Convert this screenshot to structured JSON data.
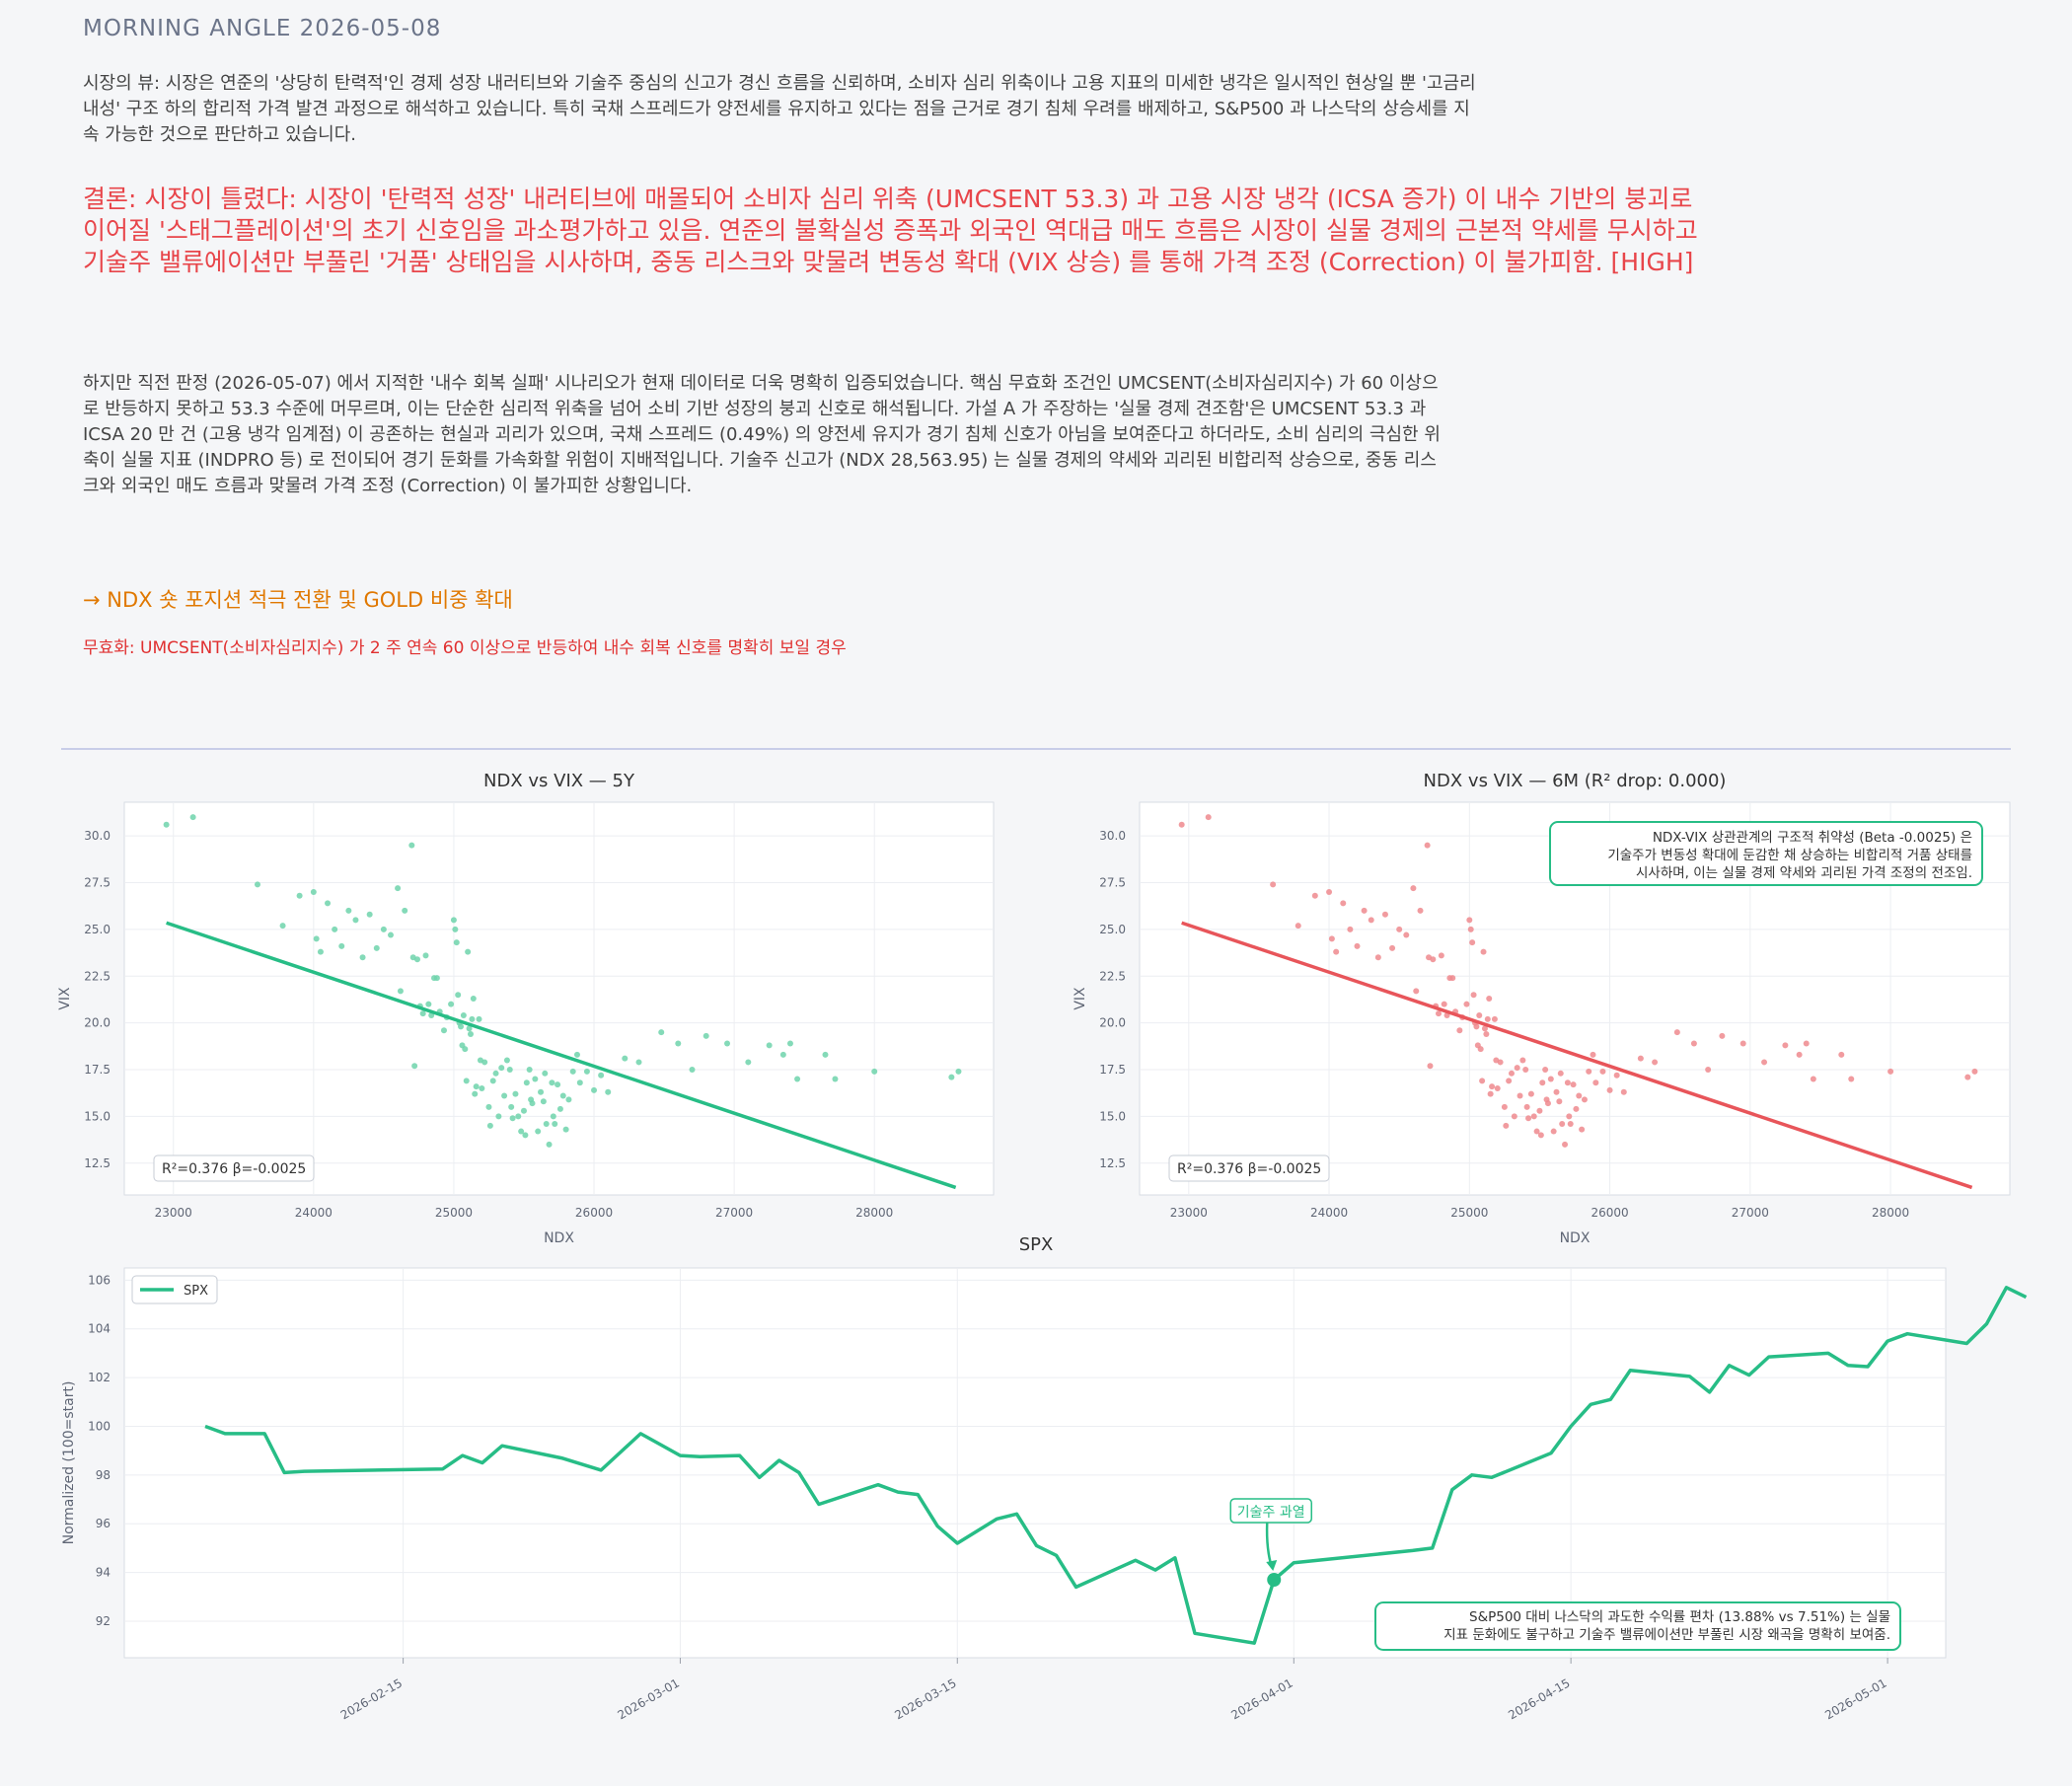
{
  "header": {
    "title": "MORNING ANGLE  2026-05-08"
  },
  "view": {
    "text": "시장의 뷰: 시장은 연준의 '상당히 탄력적'인 경제 성장 내러티브와 기술주 중심의 신고가 경신 흐름을 신뢰하며, 소비자 심리 위축이나 고용 지표의 미세한 냉각은 일시적인 현상일 뿐 '고금리 내성' 구조 하의 합리적 가격 발견 과정으로 해석하고 있습니다. 특히 국채 스프레드가 양전세를 유지하고 있다는 점을 근거로 경기 침체 우려를 배제하고, S&P500 과 나스닥의 상승세를 지속 가능한 것으로 판단하고 있습니다."
  },
  "conclusion": {
    "text": "결론: 시장이 틀렸다: 시장이 '탄력적 성장' 내러티브에 매몰되어 소비자 심리 위축 (UMCSENT 53.3) 과 고용 시장 냉각 (ICSA 증가) 이 내수 기반의 붕괴로 이어질 '스태그플레이션'의 초기 신호임을 과소평가하고 있음. 연준의 불확실성 증폭과 외국인 역대급 매도 흐름은 시장이 실물 경제의 근본적 약세를 무시하고 기술주 밸류에이션만 부풀린 '거품' 상태임을 시사하며, 중동 리스크와 맞물려 변동성 확대 (VIX 상승) 를 통해 가격 조정 (Correction) 이 불가피함.  [HIGH]"
  },
  "analysis": {
    "text": "하지만 직전 판정 (2026-05-07) 에서 지적한 '내수 회복 실패' 시나리오가 현재 데이터로 더욱 명확히 입증되었습니다. 핵심 무효화 조건인 UMCSENT(소비자심리지수) 가 60 이상으로 반등하지 못하고 53.3 수준에 머무르며, 이는 단순한 심리적 위축을 넘어 소비 기반 성장의 붕괴 신호로 해석됩니다. 가설 A 가 주장하는 '실물 경제 견조함'은 UMCSENT 53.3 과 ICSA 20 만 건 (고용 냉각 임계점) 이 공존하는 현실과 괴리가 있으며, 국채 스프레드 (0.49%) 의 양전세 유지가 경기 침체 신호가 아님을 보여준다고 하더라도, 소비 심리의 극심한 위축이 실물 지표 (INDPRO 등) 로 전이되어 경기 둔화를 가속화할 위험이 지배적입니다. 기술주 신고가 (NDX 28,563.95) 는 실물 경제의 약세와 괴리된 비합리적 상승으로, 중동 리스크와 외국인 매도 흐름과 맞물려 가격 조정 (Correction) 이 불가피한 상황입니다."
  },
  "action": {
    "text": "→ NDX 숏 포지션 적극 전환 및 GOLD 비중 확대"
  },
  "invalidation": {
    "text": "무효화: UMCSENT(소비자심리지수) 가 2 주 연속 60 이상으로 반등하여 내수 회복 신호를 명확히 보일 경우"
  },
  "colors": {
    "green": "#27bd86",
    "red": "#e8555a",
    "red_points": "#ee8a8e",
    "green_points": "#6fd3ab"
  },
  "chart_data": [
    {
      "type": "scatter",
      "title": "NDX vs VIX — 5Y",
      "xlabel": "NDX",
      "ylabel": "VIX",
      "xlim": [
        22650,
        28850
      ],
      "ylim": [
        10.8,
        31.8
      ],
      "xticks": [
        23000,
        24000,
        25000,
        26000,
        27000,
        28000
      ],
      "yticks": [
        12.5,
        15.0,
        17.5,
        20.0,
        22.5,
        25.0,
        27.5,
        30.0
      ],
      "fit_line": [
        [
          22950,
          25.35
        ],
        [
          28580,
          11.2
        ]
      ],
      "stats_label": "R²=0.376  β=-0.0025",
      "grid": true,
      "series": [
        {
          "color": "#6fd3ab",
          "points_ref": "points"
        }
      ]
    },
    {
      "type": "scatter",
      "title": "NDX vs VIX — 6M (R² drop: 0.000)",
      "xlabel": "NDX",
      "ylabel": "VIX",
      "xlim": [
        22650,
        28850
      ],
      "ylim": [
        10.8,
        31.8
      ],
      "xticks": [
        23000,
        24000,
        25000,
        26000,
        27000,
        28000
      ],
      "yticks": [
        12.5,
        15.0,
        17.5,
        20.0,
        22.5,
        25.0,
        27.5,
        30.0
      ],
      "fit_line": [
        [
          22950,
          25.35
        ],
        [
          28580,
          11.2
        ]
      ],
      "stats_label": "R²=0.376  β=-0.0025",
      "annotation": [
        "NDX-VIX 상관관계의 구조적 취약성 (Beta -0.0025) 은",
        "기술주가 변동성 확대에 둔감한 채 상승하는 비합리적 거품 상태를",
        "시사하며, 이는 실물 경제 약세와 괴리된 가격 조정의 전조임."
      ],
      "grid": true,
      "series": [
        {
          "color": "#ee8a8e",
          "points_ref": "points"
        }
      ]
    },
    {
      "type": "line",
      "title": "SPX",
      "ylabel": "Normalized (100=start)",
      "legend": [
        "SPX"
      ],
      "legend_position": "top-left",
      "ylim": [
        90.5,
        106.5
      ],
      "yticks": [
        92,
        94,
        96,
        98,
        100,
        102,
        104,
        106
      ],
      "xticks": [
        "2026-02-15",
        "2026-03-01",
        "2026-03-15",
        "2026-04-01",
        "2026-04-15",
        "2026-05-01"
      ],
      "marker_point": [
        "2026-03-31",
        93.7
      ],
      "marker_label": "기술주 과열",
      "annotation": [
        "S&P500 대비 나스닥의 과도한 수익률 편차 (13.88% vs 7.51%) 는 실물",
        "지표 둔화에도 불구하고 기술주 밸류에이션만 부풀린 시장 왜곡을 명확히 보여줌."
      ],
      "grid": true,
      "series": [
        {
          "name": "SPX",
          "color": "#27bd86",
          "values": [
            [
              "2026-02-05",
              100.0
            ],
            [
              "2026-02-06",
              99.7
            ],
            [
              "2026-02-08",
              99.7
            ],
            [
              "2026-02-09",
              98.1
            ],
            [
              "2026-02-10",
              98.15
            ],
            [
              "2026-02-17",
              98.25
            ],
            [
              "2026-02-18",
              98.8
            ],
            [
              "2026-02-19",
              98.5
            ],
            [
              "2026-02-20",
              99.2
            ],
            [
              "2026-02-23",
              98.7
            ],
            [
              "2026-02-25",
              98.2
            ],
            [
              "2026-02-27",
              99.7
            ],
            [
              "2026-02-28",
              99.25
            ],
            [
              "2026-03-01",
              98.8
            ],
            [
              "2026-03-02",
              98.75
            ],
            [
              "2026-03-04",
              98.8
            ],
            [
              "2026-03-05",
              97.9
            ],
            [
              "2026-03-06",
              98.6
            ],
            [
              "2026-03-07",
              98.1
            ],
            [
              "2026-03-08",
              96.8
            ],
            [
              "2026-03-11",
              97.6
            ],
            [
              "2026-03-12",
              97.3
            ],
            [
              "2026-03-13",
              97.2
            ],
            [
              "2026-03-14",
              95.9
            ],
            [
              "2026-03-15",
              95.2
            ],
            [
              "2026-03-17",
              96.2
            ],
            [
              "2026-03-18",
              96.4
            ],
            [
              "2026-03-19",
              95.1
            ],
            [
              "2026-03-20",
              94.7
            ],
            [
              "2026-03-21",
              93.4
            ],
            [
              "2026-03-24",
              94.5
            ],
            [
              "2026-03-25",
              94.1
            ],
            [
              "2026-03-26",
              94.6
            ],
            [
              "2026-03-27",
              91.5
            ],
            [
              "2026-03-30",
              91.1
            ],
            [
              "2026-03-31",
              93.7
            ],
            [
              "2026-04-01",
              94.4
            ],
            [
              "2026-04-07",
              94.9
            ],
            [
              "2026-04-08",
              95.0
            ],
            [
              "2026-04-09",
              97.4
            ],
            [
              "2026-04-10",
              98.0
            ],
            [
              "2026-04-11",
              97.9
            ],
            [
              "2026-04-14",
              98.9
            ],
            [
              "2026-04-15",
              100.0
            ],
            [
              "2026-04-16",
              100.9
            ],
            [
              "2026-04-17",
              101.1
            ],
            [
              "2026-04-18",
              102.3
            ],
            [
              "2026-04-21",
              102.05
            ],
            [
              "2026-04-22",
              101.4
            ],
            [
              "2026-04-23",
              102.5
            ],
            [
              "2026-04-24",
              102.1
            ],
            [
              "2026-04-25",
              102.85
            ],
            [
              "2026-04-28",
              103.0
            ],
            [
              "2026-04-29",
              102.5
            ],
            [
              "2026-04-30",
              102.45
            ],
            [
              "2026-05-01",
              103.5
            ],
            [
              "2026-05-02",
              103.8
            ],
            [
              "2026-05-05",
              103.4
            ],
            [
              "2026-05-06",
              104.2
            ],
            [
              "2026-05-07",
              105.7
            ],
            [
              "2026-05-08",
              105.3
            ]
          ]
        }
      ]
    }
  ],
  "points": [
    [
      22950,
      30.6
    ],
    [
      23140,
      31.0
    ],
    [
      23600,
      27.4
    ],
    [
      23780,
      25.2
    ],
    [
      23900,
      26.8
    ],
    [
      24000,
      27.0
    ],
    [
      24020,
      24.5
    ],
    [
      24050,
      23.8
    ],
    [
      24100,
      26.4
    ],
    [
      24150,
      25.0
    ],
    [
      24200,
      24.1
    ],
    [
      24250,
      26.0
    ],
    [
      24300,
      25.5
    ],
    [
      24350,
      23.5
    ],
    [
      24400,
      25.8
    ],
    [
      24450,
      24.0
    ],
    [
      24500,
      25.0
    ],
    [
      24550,
      24.7
    ],
    [
      24600,
      27.2
    ],
    [
      24620,
      21.7
    ],
    [
      24650,
      26.0
    ],
    [
      24700,
      29.5
    ],
    [
      24710,
      23.5
    ],
    [
      24720,
      17.7
    ],
    [
      24740,
      23.4
    ],
    [
      24760,
      20.9
    ],
    [
      24780,
      20.5
    ],
    [
      24800,
      23.6
    ],
    [
      24820,
      21.0
    ],
    [
      24840,
      20.4
    ],
    [
      24860,
      22.4
    ],
    [
      24880,
      22.4
    ],
    [
      24900,
      20.6
    ],
    [
      24930,
      19.6
    ],
    [
      24950,
      20.3
    ],
    [
      24980,
      21.0
    ],
    [
      25000,
      25.5
    ],
    [
      25010,
      25.0
    ],
    [
      25020,
      24.3
    ],
    [
      25030,
      21.5
    ],
    [
      25040,
      20.0
    ],
    [
      25050,
      19.8
    ],
    [
      25060,
      18.8
    ],
    [
      25070,
      20.4
    ],
    [
      25080,
      18.6
    ],
    [
      25090,
      16.9
    ],
    [
      25100,
      23.8
    ],
    [
      25110,
      19.7
    ],
    [
      25120,
      19.4
    ],
    [
      25130,
      20.2
    ],
    [
      25140,
      21.3
    ],
    [
      25150,
      16.2
    ],
    [
      25160,
      16.6
    ],
    [
      25180,
      20.2
    ],
    [
      25190,
      18.0
    ],
    [
      25200,
      16.5
    ],
    [
      25220,
      17.9
    ],
    [
      25250,
      15.5
    ],
    [
      25260,
      14.5
    ],
    [
      25280,
      16.9
    ],
    [
      25300,
      17.3
    ],
    [
      25320,
      15.0
    ],
    [
      25340,
      17.6
    ],
    [
      25360,
      16.1
    ],
    [
      25380,
      18.0
    ],
    [
      25400,
      17.5
    ],
    [
      25410,
      15.5
    ],
    [
      25420,
      14.9
    ],
    [
      25440,
      16.2
    ],
    [
      25460,
      15.0
    ],
    [
      25480,
      14.2
    ],
    [
      25500,
      15.3
    ],
    [
      25510,
      14.0
    ],
    [
      25520,
      16.8
    ],
    [
      25540,
      17.5
    ],
    [
      25550,
      15.9
    ],
    [
      25560,
      15.7
    ],
    [
      25580,
      17.0
    ],
    [
      25600,
      14.2
    ],
    [
      25620,
      16.3
    ],
    [
      25640,
      15.8
    ],
    [
      25650,
      17.3
    ],
    [
      25660,
      14.6
    ],
    [
      25680,
      13.5
    ],
    [
      25700,
      16.8
    ],
    [
      25710,
      15.0
    ],
    [
      25720,
      14.6
    ],
    [
      25740,
      16.7
    ],
    [
      25760,
      15.4
    ],
    [
      25780,
      16.1
    ],
    [
      25800,
      14.3
    ],
    [
      25820,
      15.9
    ],
    [
      25850,
      17.4
    ],
    [
      25880,
      18.3
    ],
    [
      25900,
      16.8
    ],
    [
      25950,
      17.4
    ],
    [
      26000,
      16.4
    ],
    [
      26050,
      17.2
    ],
    [
      26100,
      16.3
    ],
    [
      26220,
      18.1
    ],
    [
      26320,
      17.9
    ],
    [
      26480,
      19.5
    ],
    [
      26600,
      18.9
    ],
    [
      26700,
      17.5
    ],
    [
      26800,
      19.3
    ],
    [
      26950,
      18.9
    ],
    [
      27100,
      17.9
    ],
    [
      27250,
      18.8
    ],
    [
      27350,
      18.3
    ],
    [
      27400,
      18.9
    ],
    [
      27450,
      17.0
    ],
    [
      27650,
      18.3
    ],
    [
      27720,
      17.0
    ],
    [
      28000,
      17.4
    ],
    [
      28550,
      17.1
    ],
    [
      28600,
      17.4
    ]
  ]
}
